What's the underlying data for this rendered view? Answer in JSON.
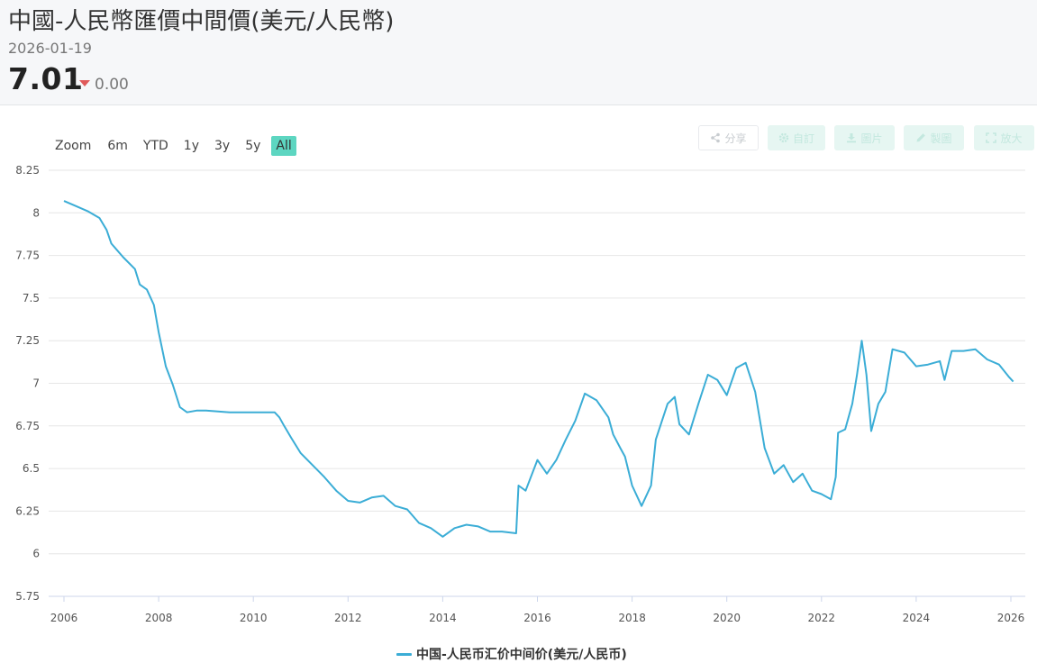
{
  "header": {
    "title": "中國-人民幣匯價中間價(美元/人民幣)",
    "date": "2026-01-19",
    "value": "7.01",
    "change": "0.00"
  },
  "zoom": {
    "label": "Zoom",
    "options": [
      "6m",
      "YTD",
      "1y",
      "3y",
      "5y",
      "All"
    ],
    "active": "All"
  },
  "toolbar": {
    "share": "分享",
    "custom": "自訂",
    "image": "圖片",
    "draw": "製圖",
    "expand": "放大"
  },
  "colors": {
    "line": "#3badd6",
    "zoom_active": "#5dd6c1",
    "down": "#e05a5a"
  },
  "chart_data": {
    "type": "line",
    "ylim": [
      5.75,
      8.25
    ],
    "yticks": [
      "5.75",
      "6",
      "6.25",
      "6.5",
      "6.75",
      "7",
      "7.25",
      "7.5",
      "7.75",
      "8",
      "8.25"
    ],
    "xlim": [
      2006,
      2026
    ],
    "xticks": [
      "2006",
      "2008",
      "2010",
      "2012",
      "2014",
      "2016",
      "2018",
      "2020",
      "2022",
      "2024",
      "2026"
    ],
    "grid": true,
    "legend_position": "bottom-center",
    "series": [
      {
        "name": "中国-人民币汇价中间价(美元/人民币)",
        "points": [
          [
            2006.0,
            8.07
          ],
          [
            2006.25,
            8.04
          ],
          [
            2006.5,
            8.01
          ],
          [
            2006.75,
            7.97
          ],
          [
            2006.9,
            7.9
          ],
          [
            2007.0,
            7.82
          ],
          [
            2007.25,
            7.74
          ],
          [
            2007.5,
            7.67
          ],
          [
            2007.6,
            7.58
          ],
          [
            2007.75,
            7.55
          ],
          [
            2007.9,
            7.46
          ],
          [
            2008.0,
            7.3
          ],
          [
            2008.15,
            7.1
          ],
          [
            2008.3,
            6.99
          ],
          [
            2008.45,
            6.86
          ],
          [
            2008.6,
            6.83
          ],
          [
            2008.8,
            6.84
          ],
          [
            2009.0,
            6.84
          ],
          [
            2009.5,
            6.83
          ],
          [
            2010.0,
            6.83
          ],
          [
            2010.45,
            6.83
          ],
          [
            2010.55,
            6.8
          ],
          [
            2010.65,
            6.75
          ],
          [
            2010.8,
            6.68
          ],
          [
            2011.0,
            6.59
          ],
          [
            2011.25,
            6.52
          ],
          [
            2011.5,
            6.45
          ],
          [
            2011.75,
            6.37
          ],
          [
            2012.0,
            6.31
          ],
          [
            2012.25,
            6.3
          ],
          [
            2012.5,
            6.33
          ],
          [
            2012.75,
            6.34
          ],
          [
            2013.0,
            6.28
          ],
          [
            2013.25,
            6.26
          ],
          [
            2013.5,
            6.18
          ],
          [
            2013.75,
            6.15
          ],
          [
            2014.0,
            6.1
          ],
          [
            2014.25,
            6.15
          ],
          [
            2014.5,
            6.17
          ],
          [
            2014.75,
            6.16
          ],
          [
            2015.0,
            6.13
          ],
          [
            2015.25,
            6.13
          ],
          [
            2015.55,
            6.12
          ],
          [
            2015.6,
            6.4
          ],
          [
            2015.75,
            6.37
          ],
          [
            2016.0,
            6.55
          ],
          [
            2016.2,
            6.47
          ],
          [
            2016.4,
            6.55
          ],
          [
            2016.6,
            6.67
          ],
          [
            2016.8,
            6.78
          ],
          [
            2017.0,
            6.94
          ],
          [
            2017.25,
            6.9
          ],
          [
            2017.5,
            6.8
          ],
          [
            2017.6,
            6.7
          ],
          [
            2017.75,
            6.62
          ],
          [
            2017.85,
            6.57
          ],
          [
            2018.0,
            6.4
          ],
          [
            2018.2,
            6.28
          ],
          [
            2018.4,
            6.4
          ],
          [
            2018.5,
            6.67
          ],
          [
            2018.75,
            6.88
          ],
          [
            2018.9,
            6.92
          ],
          [
            2019.0,
            6.76
          ],
          [
            2019.2,
            6.7
          ],
          [
            2019.4,
            6.88
          ],
          [
            2019.6,
            7.05
          ],
          [
            2019.8,
            7.02
          ],
          [
            2020.0,
            6.93
          ],
          [
            2020.2,
            7.09
          ],
          [
            2020.4,
            7.12
          ],
          [
            2020.6,
            6.95
          ],
          [
            2020.8,
            6.62
          ],
          [
            2021.0,
            6.47
          ],
          [
            2021.2,
            6.52
          ],
          [
            2021.4,
            6.42
          ],
          [
            2021.6,
            6.47
          ],
          [
            2021.8,
            6.37
          ],
          [
            2022.0,
            6.35
          ],
          [
            2022.2,
            6.32
          ],
          [
            2022.3,
            6.45
          ],
          [
            2022.35,
            6.71
          ],
          [
            2022.5,
            6.73
          ],
          [
            2022.65,
            6.88
          ],
          [
            2022.75,
            7.05
          ],
          [
            2022.85,
            7.25
          ],
          [
            2022.95,
            7.05
          ],
          [
            2023.05,
            6.72
          ],
          [
            2023.2,
            6.88
          ],
          [
            2023.35,
            6.95
          ],
          [
            2023.5,
            7.2
          ],
          [
            2023.75,
            7.18
          ],
          [
            2024.0,
            7.1
          ],
          [
            2024.25,
            7.11
          ],
          [
            2024.5,
            7.13
          ],
          [
            2024.6,
            7.02
          ],
          [
            2024.75,
            7.19
          ],
          [
            2025.0,
            7.19
          ],
          [
            2025.25,
            7.2
          ],
          [
            2025.5,
            7.14
          ],
          [
            2025.75,
            7.11
          ],
          [
            2025.95,
            7.04
          ],
          [
            2026.05,
            7.01
          ]
        ]
      }
    ]
  }
}
